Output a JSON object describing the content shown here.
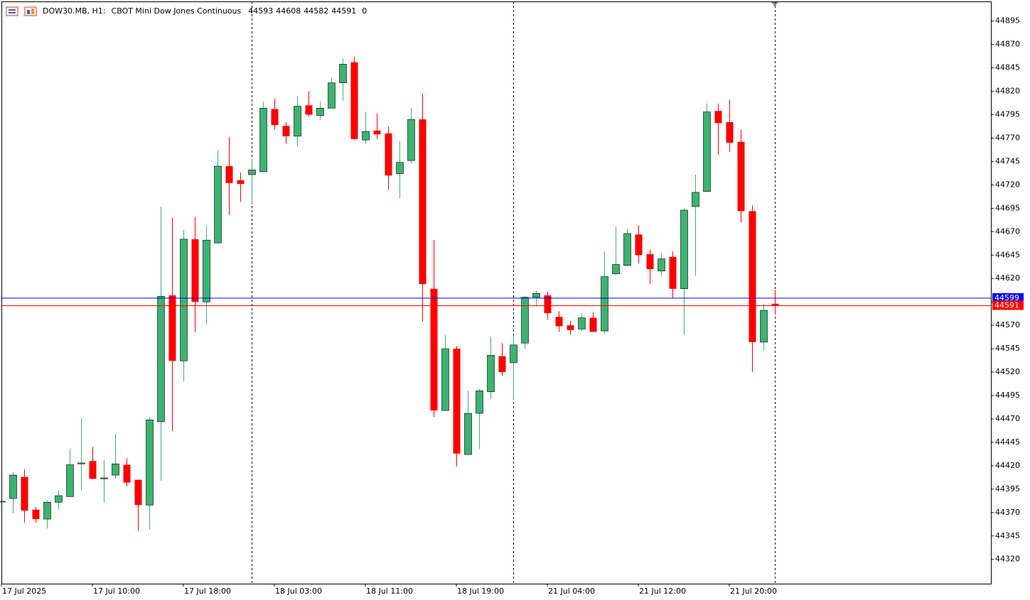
{
  "header": {
    "symbol": "DOW30.MB, H1:",
    "description": "CBOT Mini Dow Jones Continuous",
    "spread": 0
  },
  "chart_data": {
    "type": "candlestick",
    "categories": [
      "17 Jul 2025",
      null,
      null,
      null,
      null,
      null,
      null,
      null,
      "17 Jul 10:00",
      null,
      null,
      null,
      null,
      null,
      null,
      null,
      "17 Jul 18:00",
      null,
      null,
      null,
      null,
      null,
      null,
      null,
      "18 Jul 03:00",
      null,
      null,
      null,
      null,
      null,
      null,
      null,
      "18 Jul 11:00",
      null,
      null,
      null,
      null,
      null,
      null,
      null,
      "18 Jul 19:00",
      null,
      null,
      null,
      null,
      null,
      null,
      null,
      "21 Jul 04:00",
      null,
      null,
      null,
      null,
      null,
      null,
      null,
      "21 Jul 12:00",
      null,
      null,
      null,
      null,
      null,
      null,
      null,
      "21 Jul 20:00",
      null,
      null,
      null,
      null
    ],
    "open": [
      44382,
      44385,
      44408,
      44373,
      44363,
      44381,
      44387,
      44422,
      44425,
      44406,
      44410,
      44421,
      44405,
      44378,
      44467,
      44602,
      44532,
      44662,
      44595,
      44658,
      44740,
      44725,
      44731,
      44734,
      44801,
      44783,
      44772,
      44805,
      44794,
      44802,
      44829,
      44851,
      44768,
      44778,
      44775,
      44732,
      44746,
      44790,
      44609,
      44479,
      44545,
      44432,
      44476,
      44499,
      44537,
      44530,
      44551,
      44600,
      44602,
      44579,
      44570,
      44566,
      44578,
      44564,
      44625,
      44634,
      44667,
      44646,
      44628,
      44643,
      44609,
      44697,
      44713,
      44799,
      44787,
      44766,
      44692,
      44552,
      44593
    ],
    "high": [
      44382,
      44413,
      44416,
      44376,
      44383,
      44394,
      44438,
      44471,
      44440,
      44426,
      44454,
      44428,
      44405,
      44472,
      44697,
      44685,
      44672,
      44686,
      44677,
      44757,
      44771,
      44733,
      44748,
      44809,
      44812,
      44787,
      44815,
      44820,
      44809,
      44834,
      44855,
      44857,
      44798,
      44796,
      44782,
      44767,
      44802,
      44818,
      44661,
      44560,
      44548,
      44500,
      44502,
      44558,
      44551,
      44559,
      44601,
      44607,
      44606,
      44585,
      44575,
      44583,
      44584,
      44649,
      44675,
      44673,
      44677,
      44651,
      44647,
      44649,
      44695,
      44731,
      44807,
      44807,
      44811,
      44779,
      44698,
      44593,
      44608
    ],
    "low": [
      44382,
      44369,
      44359,
      44359,
      44353,
      44373,
      44387,
      44394,
      44406,
      44381,
      44406,
      44398,
      44350,
      44352,
      44404,
      44457,
      44510,
      44563,
      44571,
      44658,
      44688,
      44702,
      44699,
      44734,
      44779,
      44764,
      44761,
      44793,
      44789,
      44802,
      44810,
      44768,
      44764,
      44769,
      44715,
      44706,
      44743,
      44574,
      44472,
      44479,
      44419,
      44431,
      44438,
      44491,
      44516,
      44491,
      44545,
      44590,
      44576,
      44563,
      44560,
      44564,
      44563,
      44561,
      44624,
      44633,
      44636,
      44614,
      44623,
      44599,
      44560,
      44623,
      44713,
      44752,
      44755,
      44680,
      44520,
      44543,
      44582
    ],
    "close": [
      44382,
      44410,
      44372,
      44363,
      44381,
      44388,
      44421,
      44423,
      44406,
      44407,
      44422,
      44402,
      44378,
      44469,
      44601,
      44532,
      44662,
      44595,
      44661,
      44740,
      44722,
      44721,
      44736,
      44802,
      44784,
      44772,
      44804,
      44795,
      44802,
      44829,
      44849,
      44769,
      44777,
      44774,
      44730,
      44744,
      44790,
      44614,
      44479,
      44545,
      44433,
      44476,
      44500,
      44538,
      44520,
      44549,
      44600,
      44604,
      44583,
      44569,
      44565,
      44578,
      44563,
      44622,
      44635,
      44668,
      44645,
      44630,
      44641,
      44609,
      44693,
      44712,
      44798,
      44786,
      44765,
      44692,
      44552,
      44586,
      44591
    ],
    "up_color": "#3cb371",
    "down_color": "#ff0000",
    "ylim": [
      44294,
      44916
    ],
    "yticks": [
      44320,
      44345,
      44370,
      44395,
      44420,
      44445,
      44470,
      44495,
      44520,
      44545,
      44570,
      44595,
      44620,
      44645,
      44670,
      44695,
      44720,
      44745,
      44770,
      44795,
      44820,
      44845,
      44870,
      44895
    ],
    "price_lines": [
      {
        "value": 44599,
        "color": "#0000ff"
      },
      {
        "value": 44591,
        "color": "#ff0000"
      }
    ],
    "period_separators": [
      22,
      45,
      68
    ]
  }
}
